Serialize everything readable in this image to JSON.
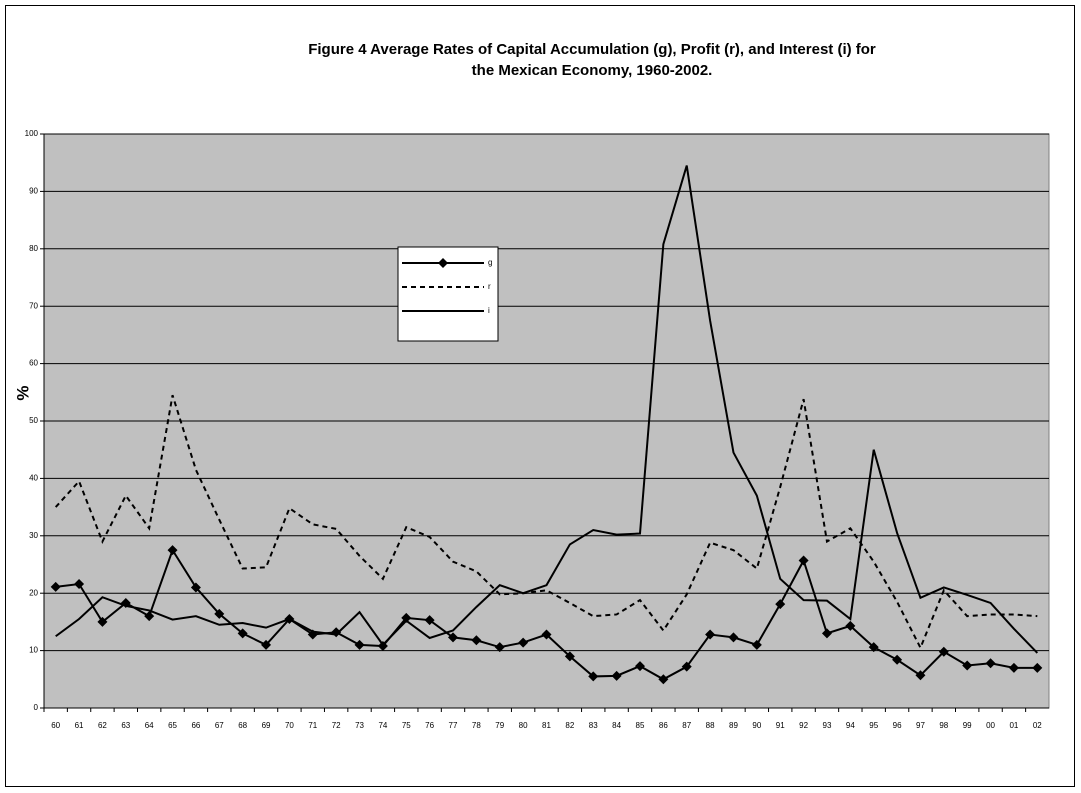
{
  "chart_data": {
    "type": "line",
    "title": [
      "Figure 4  Average Rates  of Capital Accumulation (g), Profit (r),      and Interest (i) for",
      "the  Mexican Economy, 1960-2002."
    ],
    "y_label": "%",
    "categories": [
      "60",
      "61",
      "62",
      "63",
      "64",
      "65",
      "66",
      "67",
      "68",
      "69",
      "70",
      "71",
      "72",
      "73",
      "74",
      "75",
      "76",
      "77",
      "78",
      "79",
      "80",
      "81",
      "82",
      "83",
      "84",
      "85",
      "86",
      "87",
      "88",
      "89",
      "90",
      "91",
      "92",
      "93",
      "94",
      "95",
      "96",
      "97",
      "98",
      "99",
      "00",
      "01",
      "02"
    ],
    "series": [
      {
        "name": "g",
        "color": "#000000",
        "marker": "diamond",
        "dashed": false,
        "values": [
          21.1,
          21.6,
          15,
          18.3,
          16,
          27.5,
          21,
          16.4,
          13,
          11,
          15.5,
          12.8,
          13.2,
          11,
          10.8,
          15.7,
          15.3,
          12.3,
          11.8,
          10.6,
          11.4,
          12.8,
          9,
          5.5,
          5.6,
          7.3,
          5,
          7.2,
          12.8,
          12.3,
          11,
          18.1,
          25.7,
          13,
          14.3,
          10.6,
          8.4,
          5.7,
          9.8,
          7.4,
          7.8,
          7,
          7
        ]
      },
      {
        "name": "r",
        "color": "#000000",
        "marker": null,
        "dashed": true,
        "values": [
          35,
          39.5,
          29,
          37,
          31.3,
          54.5,
          41.5,
          32.8,
          24.3,
          24.5,
          34.8,
          32,
          31.2,
          26.5,
          22.5,
          31.5,
          29.8,
          25.5,
          23.8,
          19.8,
          20,
          20.5,
          18.3,
          16,
          16.3,
          18.8,
          13.5,
          19.8,
          28.8,
          27.5,
          24.3,
          38.5,
          53.8,
          29,
          31.3,
          25.5,
          18.5,
          10.5,
          20.5,
          16,
          16.3,
          16.3,
          16
        ]
      },
      {
        "name": "i",
        "color": "#000000",
        "marker": null,
        "dashed": false,
        "values": [
          12.5,
          15.5,
          19.3,
          17.8,
          17,
          15.4,
          16,
          14.5,
          14.8,
          14,
          15.5,
          13.3,
          12.8,
          16.7,
          11,
          15.2,
          12.2,
          13.5,
          17.6,
          21.4,
          20,
          21.4,
          28.5,
          31,
          30.2,
          30.4,
          80.8,
          94.5,
          67.5,
          44.5,
          37,
          22.5,
          18.8,
          18.7,
          15.5,
          45,
          30.5,
          19.2,
          21,
          19.7,
          18.3,
          13.8,
          9.6
        ]
      }
    ],
    "ylim": [
      0,
      100
    ],
    "yticks": [
      0,
      10,
      20,
      30,
      40,
      50,
      60,
      70,
      80,
      90,
      100
    ],
    "grid": true,
    "plot_background": "#c0c0c0"
  }
}
